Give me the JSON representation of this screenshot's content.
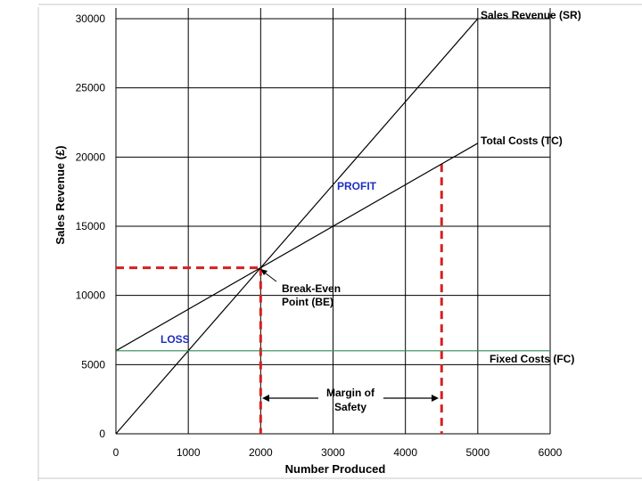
{
  "chart_data": {
    "type": "line",
    "title": "",
    "xlabel": "Number Produced",
    "ylabel": "Sales Revenue (£)",
    "xlim": [
      0,
      6000
    ],
    "ylim": [
      0,
      30000
    ],
    "grid": true,
    "x_ticks": [
      0,
      1000,
      2000,
      3000,
      4000,
      5000,
      6000
    ],
    "y_ticks": [
      0,
      5000,
      10000,
      15000,
      20000,
      25000,
      30000
    ],
    "series": [
      {
        "name": "Sales Revenue (SR)",
        "color": "#000000",
        "x": [
          0,
          5000
        ],
        "y": [
          0,
          30000
        ]
      },
      {
        "name": "Total Costs (TC)",
        "color": "#000000",
        "x": [
          0,
          5000
        ],
        "y": [
          6000,
          21000
        ]
      },
      {
        "name": "Fixed Costs (FC)",
        "color": "#2e8b57",
        "x": [
          0,
          6000
        ],
        "y": [
          6000,
          6000
        ]
      }
    ],
    "reference_lines": [
      {
        "color": "#d62020",
        "style": "dashed",
        "x": [
          0,
          2000
        ],
        "y": [
          12000,
          12000
        ]
      },
      {
        "color": "#d62020",
        "style": "dashed",
        "x": [
          2000,
          2000
        ],
        "y": [
          12000,
          0
        ]
      },
      {
        "color": "#d62020",
        "style": "dashed",
        "x": [
          4500,
          4500
        ],
        "y": [
          19500,
          0
        ]
      }
    ],
    "annotations": {
      "profit": "PROFIT",
      "loss": "LOSS",
      "break_even_line1": "Break-Even",
      "break_even_line2": "Point (BE)",
      "margin_line1": "Margin of",
      "margin_line2": "Safety"
    },
    "annotation_colors": {
      "region_labels": "#1f2fbf"
    },
    "break_even_point": {
      "x": 2000,
      "y": 12000
    },
    "margin_of_safety": {
      "from_x": 2000,
      "to_x": 4500
    }
  }
}
